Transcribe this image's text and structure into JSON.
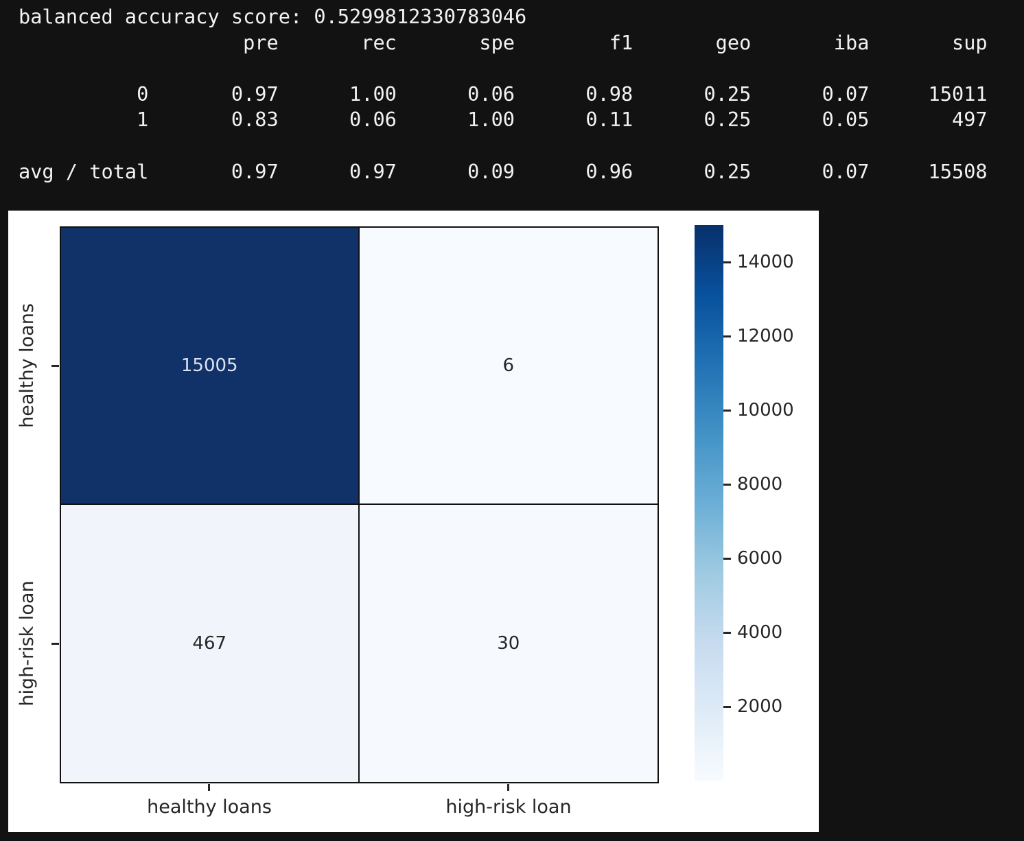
{
  "terminal": {
    "balanced_accuracy_label": "balanced accuracy score:",
    "balanced_accuracy_value": "0.5299812330783046",
    "report": {
      "headers": [
        "pre",
        "rec",
        "spe",
        "f1",
        "geo",
        "iba",
        "sup"
      ],
      "rows": [
        {
          "label": "0",
          "values": [
            "0.97",
            "1.00",
            "0.06",
            "0.98",
            "0.25",
            "0.07",
            "15011"
          ]
        },
        {
          "label": "1",
          "values": [
            "0.83",
            "0.06",
            "1.00",
            "0.11",
            "0.25",
            "0.05",
            "497"
          ]
        },
        {
          "label": "avg / total",
          "values": [
            "0.97",
            "0.97",
            "0.09",
            "0.96",
            "0.25",
            "0.07",
            "15508"
          ]
        }
      ]
    }
  },
  "chart_data": {
    "type": "heatmap",
    "title": "",
    "xlabel": "",
    "ylabel": "",
    "x_categories": [
      "healthy loans",
      "high-risk loan"
    ],
    "y_categories": [
      "healthy loans",
      "high-risk loan"
    ],
    "matrix": [
      [
        15005,
        6
      ],
      [
        467,
        30
      ]
    ],
    "cell_colors": [
      [
        "#113269",
        "#f7fafe"
      ],
      [
        "#f1f5fb",
        "#f6f9fe"
      ]
    ],
    "annot_colors": [
      [
        "#dbe3f0",
        "#262626"
      ],
      [
        "#262626",
        "#262626"
      ]
    ],
    "colorbar": {
      "vmin": 6,
      "vmax": 15005,
      "ticks": [
        2000,
        4000,
        6000,
        8000,
        10000,
        12000,
        14000
      ],
      "colormap": "Blues",
      "position": "right"
    },
    "grid": false
  },
  "colors": {
    "page_background": "#121212",
    "terminal_text": "#f2f2f2",
    "figure_background": "#ffffff",
    "axis_text": "#262626",
    "max_cell": "#113269"
  }
}
